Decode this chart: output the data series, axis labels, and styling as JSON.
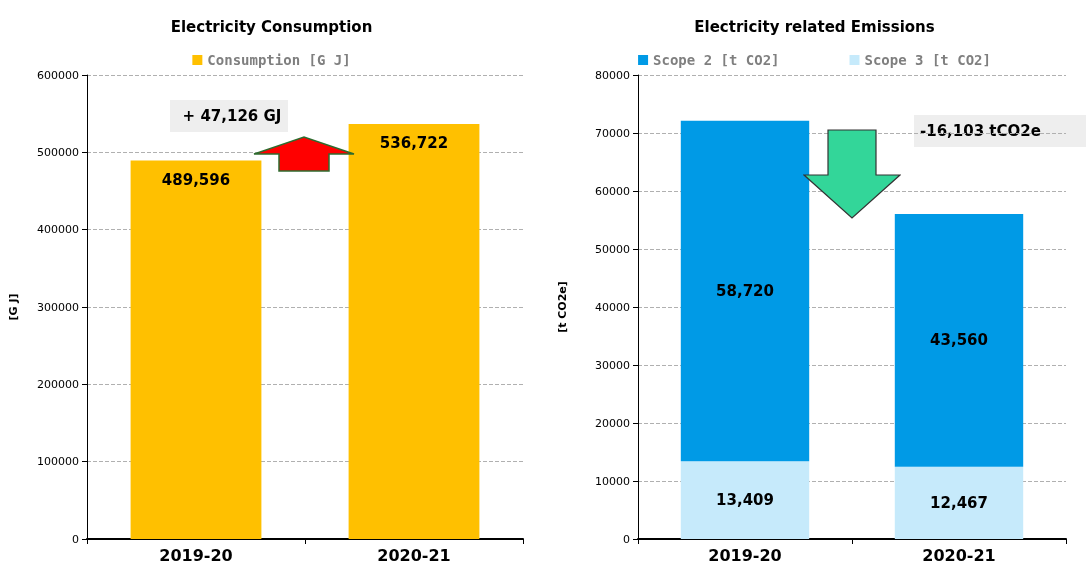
{
  "chart_data": [
    {
      "type": "bar",
      "title": "Electricity Consumption",
      "ylabel": "[G J]",
      "categories": [
        "2019-20",
        "2020-21"
      ],
      "series": [
        {
          "name": "Consumption [G J]",
          "color": "#ffc000",
          "values": [
            489596,
            536722
          ],
          "value_labels": [
            "489,596",
            "536,722"
          ]
        }
      ],
      "ylim": [
        0,
        600000
      ],
      "yticks": [
        0,
        100000,
        200000,
        300000,
        400000,
        500000,
        600000
      ],
      "grid": "y",
      "legend": "top",
      "annotations": [
        "+ 47,126 GJ"
      ]
    },
    {
      "type": "bar",
      "title": "Electricity related Emissions",
      "ylabel": "[t CO2e]",
      "categories": [
        "2019-20",
        "2020-21"
      ],
      "stacked": true,
      "series": [
        {
          "name": "Scope 3 [t CO2]",
          "color": "#c6eafb",
          "values": [
            13409,
            12467
          ],
          "value_labels": [
            "13,409",
            "12,467"
          ]
        },
        {
          "name": "Scope 2 [t CO2]",
          "color": "#009ae6",
          "values": [
            58720,
            43560
          ],
          "value_labels": [
            "58,720",
            "43,560"
          ]
        }
      ],
      "ylim": [
        0,
        80000
      ],
      "yticks": [
        0,
        10000,
        20000,
        30000,
        40000,
        50000,
        60000,
        70000,
        80000
      ],
      "grid": "y",
      "legend": "top",
      "annotations": [
        "-16,103 tCO2e"
      ]
    }
  ]
}
